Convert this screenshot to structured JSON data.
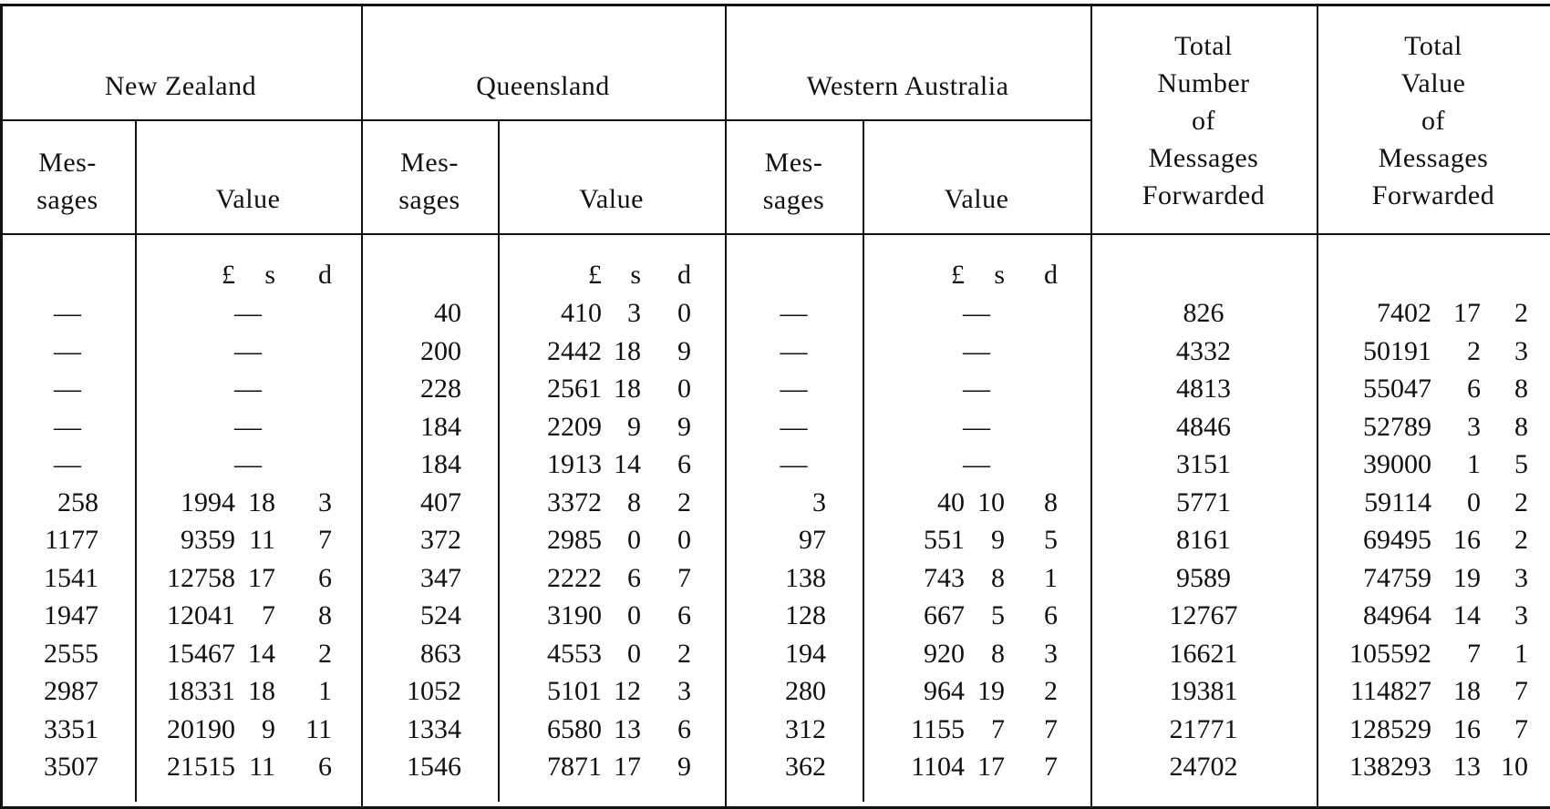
{
  "headers": {
    "groups": [
      "New Zealand",
      "Queensland",
      "Western Australia"
    ],
    "sub": {
      "messages_line1": "Mes-",
      "messages_line2": "sages",
      "value": "Value"
    },
    "total_number": [
      "Total",
      "Number",
      "of",
      "Messages",
      "Forwarded"
    ],
    "total_value": [
      "Total",
      "Value",
      "of",
      "Messages",
      "Forwarded"
    ],
    "units": [
      "£",
      "s",
      "d"
    ]
  },
  "rows": [
    {
      "nz_msg": "—",
      "nz_val": [
        "—",
        "",
        ""
      ],
      "q_msg": "40",
      "q_val": [
        "410",
        "3",
        "0"
      ],
      "wa_msg": "—",
      "wa_val": [
        "—",
        "",
        ""
      ],
      "total_num": "826",
      "total_val": [
        "7402",
        "17",
        "2"
      ]
    },
    {
      "nz_msg": "—",
      "nz_val": [
        "—",
        "",
        ""
      ],
      "q_msg": "200",
      "q_val": [
        "2442",
        "18",
        "9"
      ],
      "wa_msg": "—",
      "wa_val": [
        "—",
        "",
        ""
      ],
      "total_num": "4332",
      "total_val": [
        "50191",
        "2",
        "3"
      ]
    },
    {
      "nz_msg": "—",
      "nz_val": [
        "—",
        "",
        ""
      ],
      "q_msg": "228",
      "q_val": [
        "2561",
        "18",
        "0"
      ],
      "wa_msg": "—",
      "wa_val": [
        "—",
        "",
        ""
      ],
      "total_num": "4813",
      "total_val": [
        "55047",
        "6",
        "8"
      ]
    },
    {
      "nz_msg": "—",
      "nz_val": [
        "—",
        "",
        ""
      ],
      "q_msg": "184",
      "q_val": [
        "2209",
        "9",
        "9"
      ],
      "wa_msg": "—",
      "wa_val": [
        "—",
        "",
        ""
      ],
      "total_num": "4846",
      "total_val": [
        "52789",
        "3",
        "8"
      ]
    },
    {
      "nz_msg": "—",
      "nz_val": [
        "—",
        "",
        ""
      ],
      "q_msg": "184",
      "q_val": [
        "1913",
        "14",
        "6"
      ],
      "wa_msg": "—",
      "wa_val": [
        "—",
        "",
        ""
      ],
      "total_num": "3151",
      "total_val": [
        "39000",
        "1",
        "5"
      ]
    },
    {
      "nz_msg": "258",
      "nz_val": [
        "1994",
        "18",
        "3"
      ],
      "q_msg": "407",
      "q_val": [
        "3372",
        "8",
        "2"
      ],
      "wa_msg": "3",
      "wa_val": [
        "40",
        "10",
        "8"
      ],
      "total_num": "5771",
      "total_val": [
        "59114",
        "0",
        "2"
      ]
    },
    {
      "nz_msg": "1177",
      "nz_val": [
        "9359",
        "11",
        "7"
      ],
      "q_msg": "372",
      "q_val": [
        "2985",
        "0",
        "0"
      ],
      "wa_msg": "97",
      "wa_val": [
        "551",
        "9",
        "5"
      ],
      "total_num": "8161",
      "total_val": [
        "69495",
        "16",
        "2"
      ]
    },
    {
      "nz_msg": "1541",
      "nz_val": [
        "12758",
        "17",
        "6"
      ],
      "q_msg": "347",
      "q_val": [
        "2222",
        "6",
        "7"
      ],
      "wa_msg": "138",
      "wa_val": [
        "743",
        "8",
        "1"
      ],
      "total_num": "9589",
      "total_val": [
        "74759",
        "19",
        "3"
      ]
    },
    {
      "nz_msg": "1947",
      "nz_val": [
        "12041",
        "7",
        "8"
      ],
      "q_msg": "524",
      "q_val": [
        "3190",
        "0",
        "6"
      ],
      "wa_msg": "128",
      "wa_val": [
        "667",
        "5",
        "6"
      ],
      "total_num": "12767",
      "total_val": [
        "84964",
        "14",
        "3"
      ]
    },
    {
      "nz_msg": "2555",
      "nz_val": [
        "15467",
        "14",
        "2"
      ],
      "q_msg": "863",
      "q_val": [
        "4553",
        "0",
        "2"
      ],
      "wa_msg": "194",
      "wa_val": [
        "920",
        "8",
        "3"
      ],
      "total_num": "16621",
      "total_val": [
        "105592",
        "7",
        "1"
      ]
    },
    {
      "nz_msg": "2987",
      "nz_val": [
        "18331",
        "18",
        "1"
      ],
      "q_msg": "1052",
      "q_val": [
        "5101",
        "12",
        "3"
      ],
      "wa_msg": "280",
      "wa_val": [
        "964",
        "19",
        "2"
      ],
      "total_num": "19381",
      "total_val": [
        "114827",
        "18",
        "7"
      ]
    },
    {
      "nz_msg": "3351",
      "nz_val": [
        "20190",
        "9",
        "11"
      ],
      "q_msg": "1334",
      "q_val": [
        "6580",
        "13",
        "6"
      ],
      "wa_msg": "312",
      "wa_val": [
        "1155",
        "7",
        "7"
      ],
      "total_num": "21771",
      "total_val": [
        "128529",
        "16",
        "7"
      ]
    },
    {
      "nz_msg": "3507",
      "nz_val": [
        "21515",
        "11",
        "6"
      ],
      "q_msg": "1546",
      "q_val": [
        "7871",
        "17",
        "9"
      ],
      "wa_msg": "362",
      "wa_val": [
        "1104",
        "17",
        "7"
      ],
      "total_num": "24702",
      "total_val": [
        "138293",
        "13",
        "10"
      ]
    }
  ]
}
